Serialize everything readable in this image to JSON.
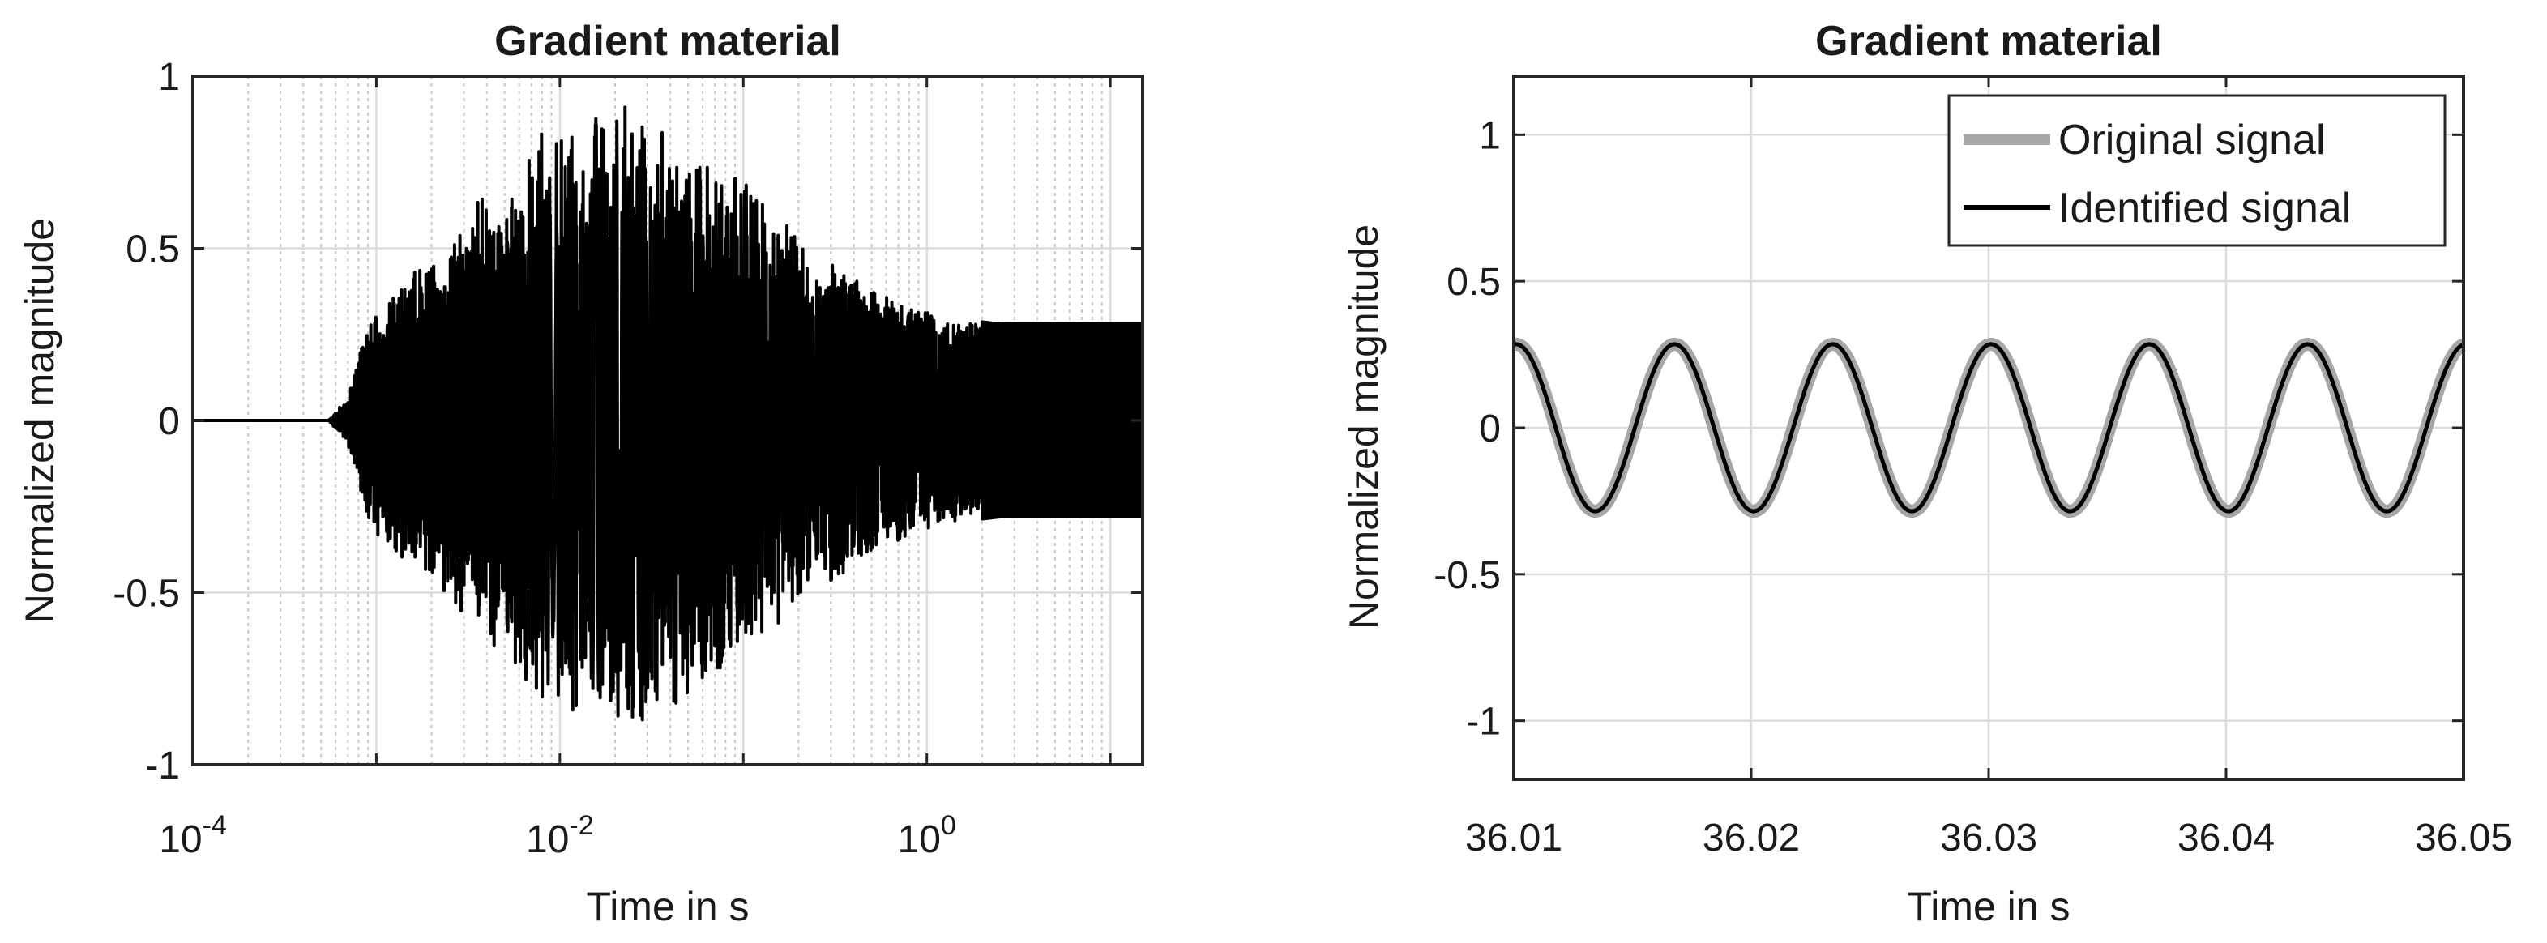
{
  "chart_data": [
    {
      "type": "line",
      "title": "Gradient material",
      "xlabel": "Time in s",
      "ylabel": "Normalized magnitude",
      "xscale": "log",
      "xlim": [
        0.0001,
        15
      ],
      "ylim": [
        -1,
        1
      ],
      "x_ticks": [
        0.0001,
        0.01,
        1
      ],
      "x_tick_labels": [
        {
          "base": "10",
          "exp": "-4"
        },
        {
          "base": "10",
          "exp": "-2"
        },
        {
          "base": "10",
          "exp": "0"
        }
      ],
      "y_ticks": [
        -1,
        -0.5,
        0,
        0.5,
        1
      ],
      "y_tick_labels": [
        "-1",
        "-0.5",
        "0",
        "0.5",
        "1"
      ],
      "grid": true,
      "minor_grid": true,
      "line_color": "#000000",
      "series": [
        {
          "kind": "transient_response",
          "zero_until": 0.00055,
          "envelope": [
            {
              "t": 0.00055,
              "a": 0.0
            },
            {
              "t": 0.0007,
              "a": 0.07
            },
            {
              "t": 0.0009,
              "a": 0.3
            },
            {
              "t": 0.0012,
              "a": 0.4
            },
            {
              "t": 0.0017,
              "a": 0.45
            },
            {
              "t": 0.003,
              "a": 0.6
            },
            {
              "t": 0.005,
              "a": 0.7
            },
            {
              "t": 0.008,
              "a": 0.85
            },
            {
              "t": 0.012,
              "a": 0.9
            },
            {
              "t": 0.025,
              "a": 0.92
            },
            {
              "t": 0.045,
              "a": 0.85
            },
            {
              "t": 0.1,
              "a": 0.7
            },
            {
              "t": 0.2,
              "a": 0.55
            },
            {
              "t": 0.5,
              "a": 0.38
            },
            {
              "t": 1.2,
              "a": 0.3
            },
            {
              "t": 2.5,
              "a": 0.28
            },
            {
              "t": 15,
              "a": 0.28
            }
          ]
        }
      ]
    },
    {
      "type": "line",
      "title": "Gradient material",
      "xlabel": "Time in s",
      "ylabel": "Normalized magnitude",
      "xlim": [
        36.01,
        36.05
      ],
      "ylim": [
        -1.2,
        1.2
      ],
      "x_ticks": [
        36.01,
        36.02,
        36.03,
        36.04,
        36.05
      ],
      "x_tick_labels": [
        "36.01",
        "36.02",
        "36.03",
        "36.04",
        "36.05"
      ],
      "y_ticks": [
        -1,
        -0.5,
        0,
        0.5,
        1
      ],
      "y_tick_labels": [
        "-1",
        "-0.5",
        "0",
        "0.5",
        "1"
      ],
      "grid": true,
      "legend_position": "top-right",
      "series": [
        {
          "name": "Original signal",
          "color": "#a6a6a6",
          "amplitude": 0.285,
          "frequency_hz": 150,
          "phase_peak_at": 36.0101
        },
        {
          "name": "Identified signal",
          "color": "#000000",
          "amplitude": 0.285,
          "frequency_hz": 150,
          "phase_peak_at": 36.0101
        }
      ]
    }
  ]
}
